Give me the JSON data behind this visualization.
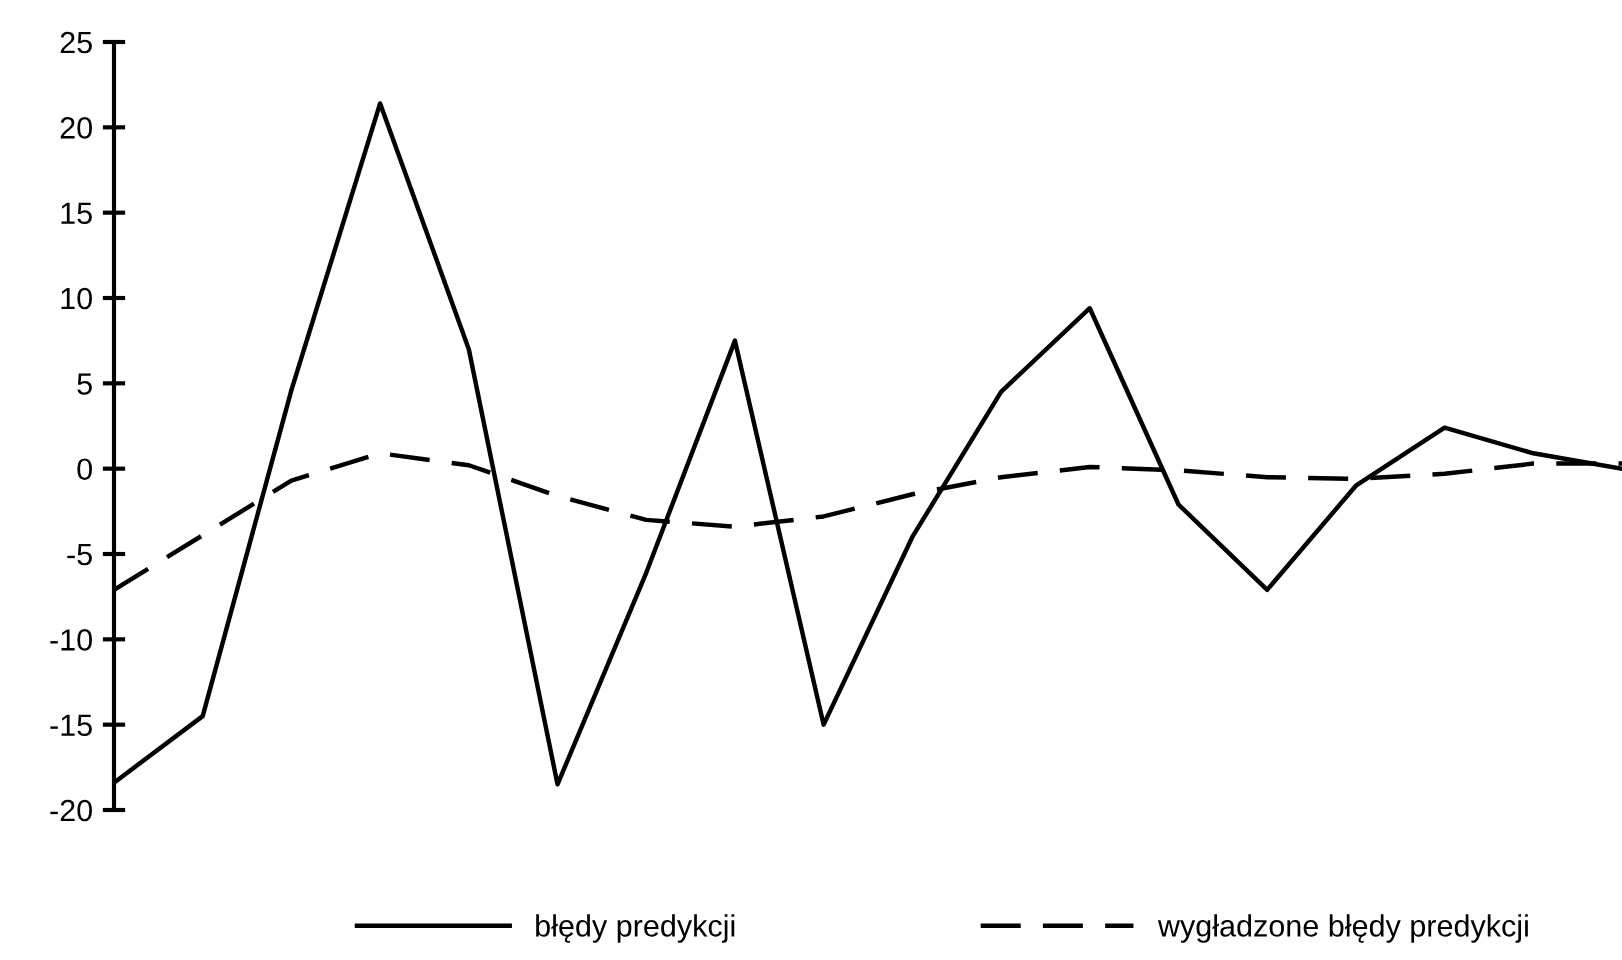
{
  "chart_data": {
    "type": "line",
    "categories": [
      null,
      null,
      null,
      null,
      null,
      null,
      null,
      null,
      null,
      null,
      null,
      null,
      null,
      null,
      null,
      null,
      null,
      null
    ],
    "series": [
      {
        "name": "błędy predykcji",
        "color": "#000000",
        "line_style": "solid",
        "values": [
          -18.4,
          -14.5,
          4.6,
          21.4,
          7.0,
          -18.5,
          -6.1,
          7.5,
          -15.0,
          -4.0,
          4.5,
          9.4,
          -2.1,
          -7.1,
          -1.0,
          2.4,
          0.9,
          0
        ]
      },
      {
        "name": "wygładzone błędy predykcji",
        "color": "#000000",
        "line_style": "dashed",
        "values": [
          -7.1,
          -3.9,
          -0.7,
          0.9,
          0.2,
          -1.6,
          -3.0,
          -3.4,
          -2.8,
          -1.5,
          -0.5,
          0.1,
          -0.1,
          -0.5,
          -0.6,
          -0.3,
          0.3,
          0.3
        ]
      }
    ],
    "ylim": [
      -20,
      25
    ],
    "yticks": [
      -20,
      -15,
      -10,
      -5,
      0,
      5,
      10,
      15,
      20,
      25
    ],
    "tick_labels": "y",
    "grid": false,
    "legend": "bottom",
    "marker": "none"
  }
}
